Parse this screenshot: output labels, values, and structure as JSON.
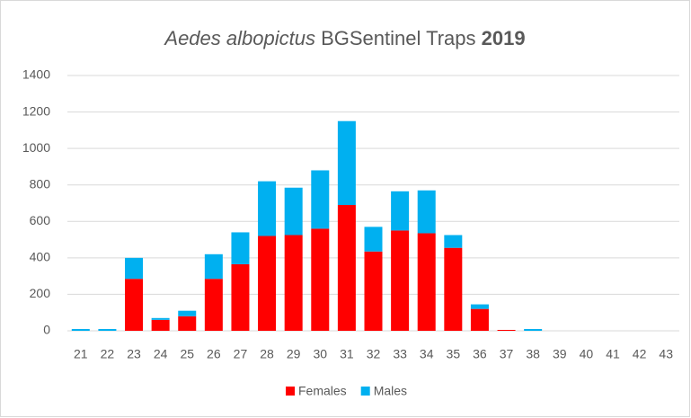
{
  "chart_data": {
    "type": "stacked_bar",
    "title": [
      "Aedes albopictus",
      "BGSentinel Traps",
      "2019"
    ],
    "categories": [
      "21",
      "22",
      "23",
      "24",
      "25",
      "26",
      "27",
      "28",
      "29",
      "30",
      "31",
      "32",
      "33",
      "34",
      "35",
      "36",
      "37",
      "38",
      "39",
      "40",
      "41",
      "42",
      "43"
    ],
    "series": [
      {
        "name": "Females",
        "color": "#ff0000",
        "values": [
          0,
          0,
          285,
          60,
          80,
          285,
          365,
          520,
          525,
          560,
          690,
          435,
          550,
          535,
          455,
          120,
          5,
          0,
          0,
          0,
          0,
          0,
          0
        ]
      },
      {
        "name": "Males",
        "color": "#00b0f0",
        "values": [
          10,
          10,
          115,
          10,
          30,
          135,
          175,
          300,
          260,
          320,
          460,
          135,
          215,
          235,
          70,
          25,
          0,
          10,
          0,
          0,
          0,
          0,
          0
        ]
      }
    ],
    "ylim": [
      0,
      1400
    ],
    "yticks": [
      0,
      200,
      400,
      600,
      800,
      1000,
      1200,
      1400
    ],
    "grid": true,
    "legend": "bottom"
  }
}
